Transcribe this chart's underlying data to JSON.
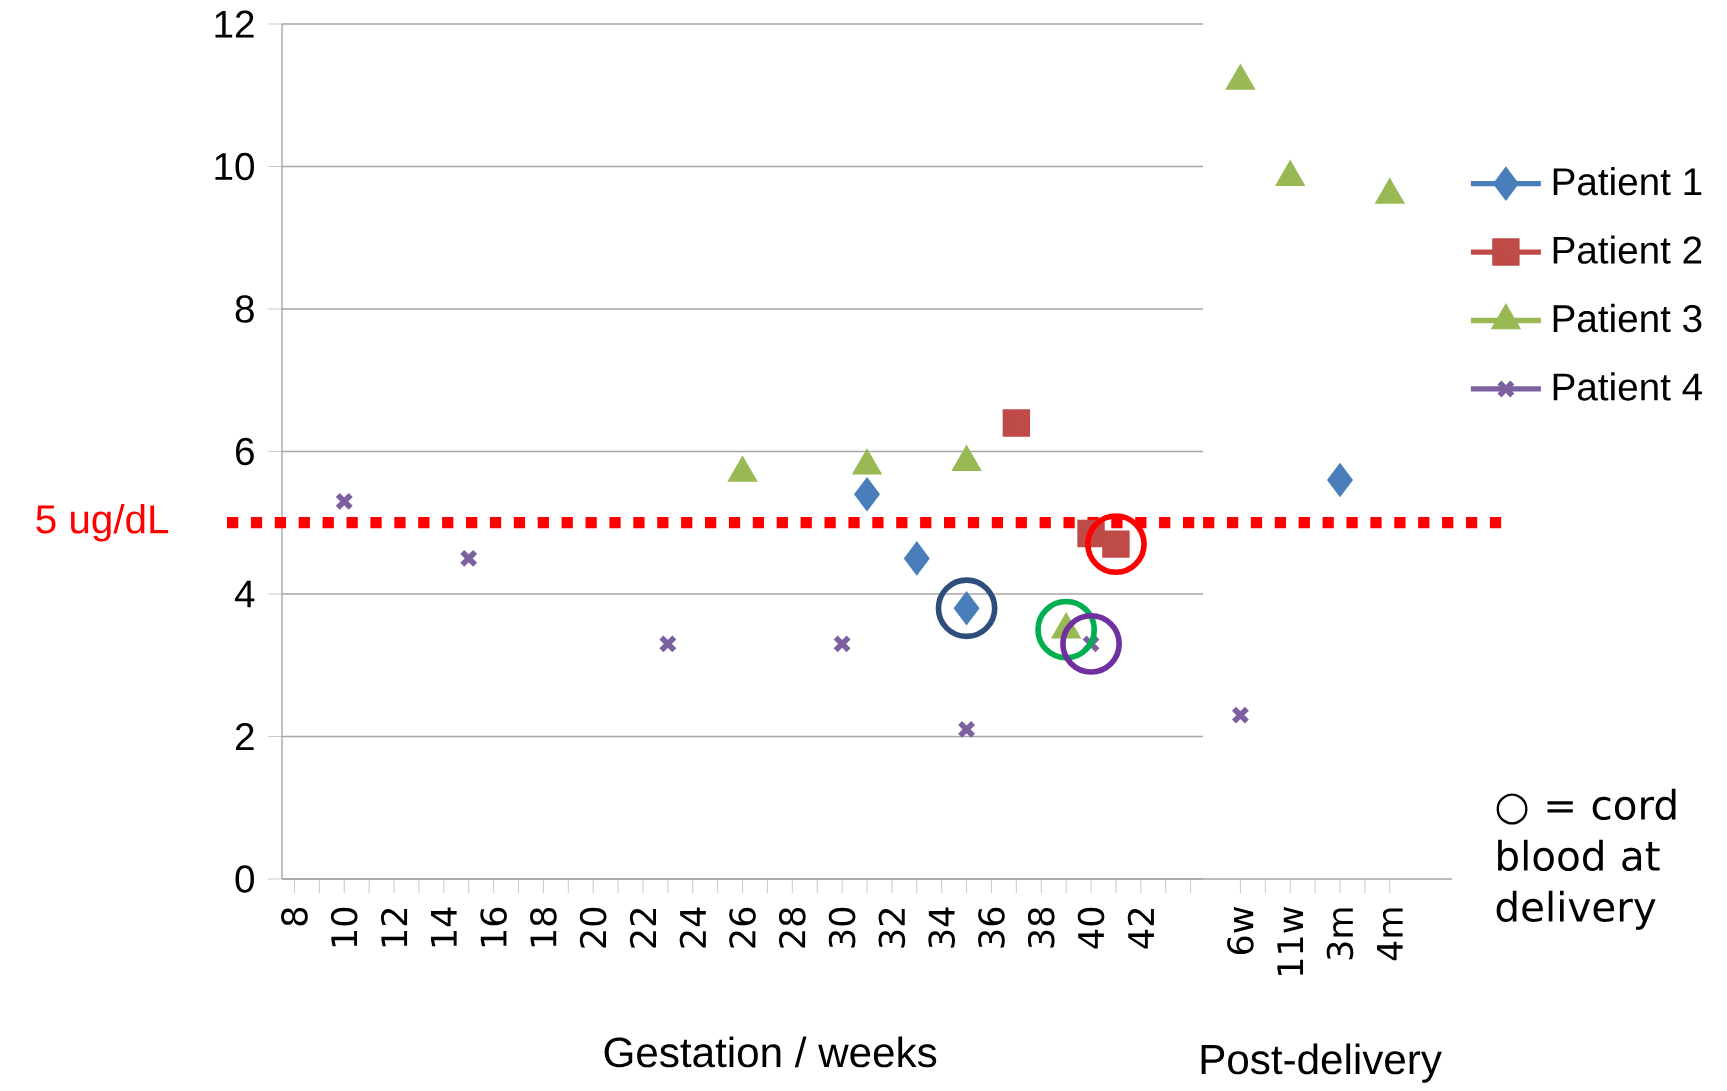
{
  "chart_data": [
    {
      "type": "scatter",
      "xlabel": "Gestation / weeks",
      "xlim": [
        7.5,
        44.5
      ],
      "xticks": [
        {
          "value": 8,
          "label": "8"
        },
        {
          "value": 9,
          "label": null
        },
        {
          "value": 10,
          "label": "10"
        },
        {
          "value": 11,
          "label": null
        },
        {
          "value": 12,
          "label": "12"
        },
        {
          "value": 13,
          "label": null
        },
        {
          "value": 14,
          "label": "14"
        },
        {
          "value": 15,
          "label": null
        },
        {
          "value": 16,
          "label": "16"
        },
        {
          "value": 17,
          "label": null
        },
        {
          "value": 18,
          "label": "18"
        },
        {
          "value": 19,
          "label": null
        },
        {
          "value": 20,
          "label": "20"
        },
        {
          "value": 21,
          "label": null
        },
        {
          "value": 22,
          "label": "22"
        },
        {
          "value": 23,
          "label": null
        },
        {
          "value": 24,
          "label": "24"
        },
        {
          "value": 25,
          "label": null
        },
        {
          "value": 26,
          "label": "26"
        },
        {
          "value": 27,
          "label": null
        },
        {
          "value": 28,
          "label": "28"
        },
        {
          "value": 29,
          "label": null
        },
        {
          "value": 30,
          "label": "30"
        },
        {
          "value": 31,
          "label": null
        },
        {
          "value": 32,
          "label": "32"
        },
        {
          "value": 33,
          "label": null
        },
        {
          "value": 34,
          "label": "34"
        },
        {
          "value": 35,
          "label": null
        },
        {
          "value": 36,
          "label": "36"
        },
        {
          "value": 37,
          "label": null
        },
        {
          "value": 38,
          "label": "38"
        },
        {
          "value": 39,
          "label": null
        },
        {
          "value": 40,
          "label": "40"
        },
        {
          "value": 41,
          "label": null
        },
        {
          "value": 42,
          "label": "42"
        },
        {
          "value": 43,
          "label": null
        },
        {
          "value": 44,
          "label": null
        }
      ],
      "ylim": [
        0,
        12
      ],
      "yticks": [
        0,
        2,
        4,
        6,
        8,
        10,
        12
      ],
      "grid": "y",
      "series": [
        {
          "color": "#4a7ebb",
          "marker": "diamond",
          "x": [
            31,
            33,
            35
          ],
          "values": [
            5.4,
            4.5,
            3.8
          ]
        },
        {
          "color": "#be4b48",
          "marker": "square",
          "x": [
            37,
            40,
            41
          ],
          "values": [
            6.4,
            4.85,
            4.7
          ]
        },
        {
          "color": "#98b954",
          "marker": "triangle",
          "x": [
            26,
            31,
            35,
            39
          ],
          "values": [
            5.7,
            5.8,
            5.85,
            3.5
          ]
        },
        {
          "color": "#7d60a0",
          "marker": "cross",
          "x": [
            10,
            15,
            23,
            30,
            35,
            40
          ],
          "values": [
            5.3,
            4.5,
            3.3,
            3.3,
            2.1,
            3.3
          ]
        },
        {
          "marker": "circle",
          "colors": [
            "#2e4d7b",
            "#00b050",
            "#7030a0",
            "#ff0000"
          ],
          "x": [
            35,
            39,
            40,
            41
          ],
          "values": [
            3.8,
            3.5,
            3.3,
            4.7
          ]
        }
      ],
      "ref_lines": [
        {
          "axis": "y",
          "value": 5,
          "label": "5 ug/dL",
          "color": "#ff0000",
          "line_style": "dotted"
        }
      ]
    },
    {
      "type": "scatter",
      "xlabel": "Post-delivery",
      "categories": [
        "6w",
        "11w",
        "3m",
        "4m"
      ],
      "ylim": [
        0,
        12
      ],
      "yticks": [
        0,
        2,
        4,
        6,
        8,
        10,
        12
      ],
      "grid": "y",
      "legend": "right",
      "tick_labels": "x",
      "series": [
        {
          "name": "Patient 1",
          "color": "#4a7ebb",
          "marker": "diamond",
          "values": [
            null,
            null,
            5.6,
            null
          ]
        },
        {
          "name": "Patient 2",
          "color": "#be4b48",
          "marker": "square",
          "values": [
            null,
            null,
            null,
            null
          ]
        },
        {
          "name": "Patient 3",
          "color": "#98b954",
          "marker": "triangle",
          "values": [
            11.2,
            9.85,
            null,
            9.6
          ]
        },
        {
          "name": "Patient 4",
          "color": "#7d60a0",
          "marker": "cross",
          "values": [
            2.3,
            null,
            null,
            null
          ]
        }
      ],
      "ref_lines": [
        {
          "axis": "y",
          "value": 5,
          "color": "#ff0000",
          "line_style": "dotted"
        }
      ],
      "annotations": [
        "○ = cord blood at delivery"
      ]
    }
  ]
}
